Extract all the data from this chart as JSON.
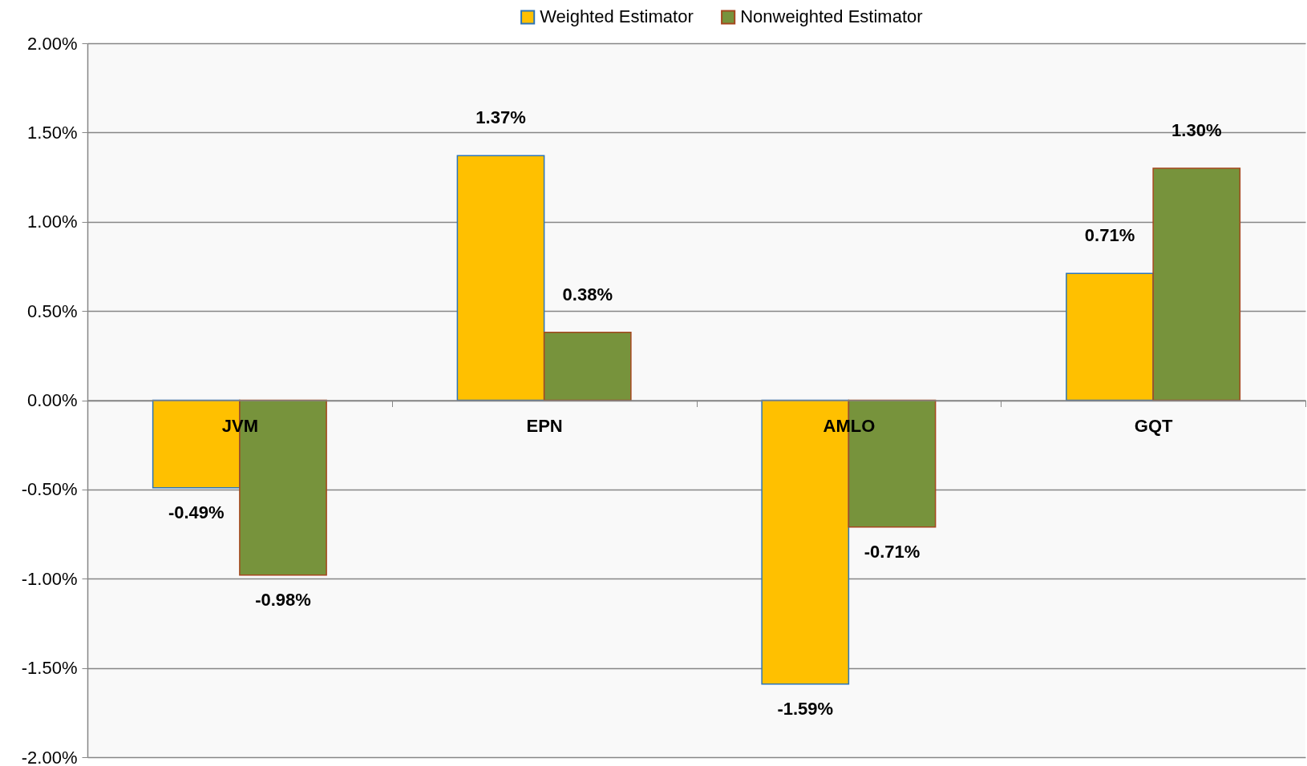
{
  "chart_data": {
    "type": "bar",
    "categories": [
      "JVM",
      "EPN",
      "AMLO",
      "GQT"
    ],
    "series": [
      {
        "name": "Weighted Estimator",
        "color": "#ffc000",
        "values": [
          -0.49,
          1.37,
          -1.59,
          0.71
        ],
        "value_labels": [
          "-0.49%",
          "1.37%",
          "-1.59%",
          "0.71%"
        ]
      },
      {
        "name": "Nonweighted Estimator",
        "color": "#77933c",
        "values": [
          -0.98,
          0.38,
          -0.71,
          1.3
        ],
        "value_labels": [
          "-0.98%",
          "0.38%",
          "-0.71%",
          "1.30%"
        ]
      }
    ],
    "ylim": [
      -2,
      2
    ],
    "yticks": [
      {
        "value": -2,
        "label": "-2.00%"
      },
      {
        "value": -1.5,
        "label": "-1.50%"
      },
      {
        "value": -1,
        "label": "-1.00%"
      },
      {
        "value": -0.5,
        "label": "-0.50%"
      },
      {
        "value": 0,
        "label": "0.00%"
      },
      {
        "value": 0.5,
        "label": "0.50%"
      },
      {
        "value": 1,
        "label": "1.00%"
      },
      {
        "value": 1.5,
        "label": "1.50%"
      },
      {
        "value": 2,
        "label": "2.00%"
      }
    ],
    "grid": "y",
    "legend": "top"
  }
}
